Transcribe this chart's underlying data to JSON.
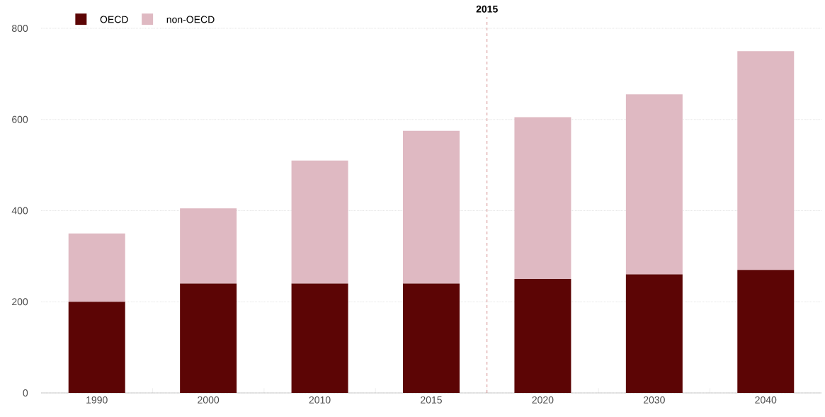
{
  "chart_data": {
    "type": "bar",
    "stacked": true,
    "categories": [
      "1990",
      "2000",
      "2010",
      "2015",
      "2020",
      "2030",
      "2040"
    ],
    "series": [
      {
        "name": "OECD",
        "color": "#5c0505",
        "values": [
          200,
          240,
          240,
          240,
          250,
          260,
          270
        ]
      },
      {
        "name": "non-OECD",
        "color": "#dfb9c2",
        "values": [
          150,
          165,
          270,
          335,
          355,
          395,
          480
        ]
      }
    ],
    "ylim": [
      0,
      800
    ],
    "yticks": [
      0,
      200,
      400,
      600,
      800
    ],
    "grid": "y",
    "legend": "top left",
    "ref_lines": [
      {
        "axis": "x",
        "value": "2015",
        "label": "2015",
        "color": "#b03030",
        "line_style": "dashed"
      }
    ]
  }
}
